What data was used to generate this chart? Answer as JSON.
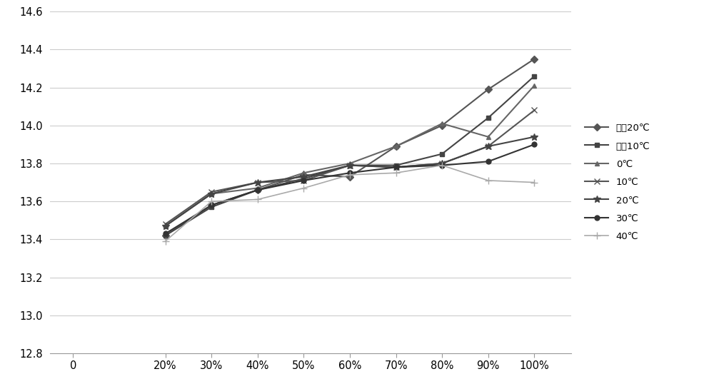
{
  "x_labels": [
    "0",
    "20%",
    "30%",
    "40%",
    "50%",
    "60%",
    "70%",
    "80%",
    "90%",
    "100%"
  ],
  "x_values": [
    0,
    20,
    30,
    40,
    50,
    60,
    70,
    80,
    90,
    100
  ],
  "series": [
    {
      "label": "零下20℃",
      "data": [
        null,
        13.42,
        13.58,
        13.66,
        13.74,
        13.73,
        13.89,
        14.0,
        14.19,
        14.35
      ],
      "color": "#555555",
      "marker": "D",
      "linewidth": 1.5,
      "markersize": 5,
      "markerfacecolor": "#555555"
    },
    {
      "label": "零下10℃",
      "data": [
        null,
        13.42,
        13.57,
        13.66,
        13.72,
        13.79,
        13.79,
        13.85,
        14.04,
        14.26
      ],
      "color": "#444444",
      "marker": "s",
      "linewidth": 1.5,
      "markersize": 5,
      "markerfacecolor": "#444444"
    },
    {
      "label": "0℃",
      "data": [
        null,
        13.47,
        13.64,
        13.67,
        13.75,
        13.8,
        13.89,
        14.01,
        13.94,
        14.21
      ],
      "color": "#666666",
      "marker": "^",
      "linewidth": 1.5,
      "markersize": 5,
      "markerfacecolor": "#666666"
    },
    {
      "label": "10℃",
      "data": [
        null,
        13.48,
        13.65,
        13.7,
        13.71,
        13.79,
        13.78,
        13.8,
        13.89,
        14.08
      ],
      "color": "#555555",
      "marker": "x",
      "linewidth": 1.5,
      "markersize": 6,
      "markerfacecolor": "#555555"
    },
    {
      "label": "20℃",
      "data": [
        null,
        13.47,
        13.64,
        13.7,
        13.73,
        13.79,
        13.78,
        13.8,
        13.89,
        13.94
      ],
      "color": "#444444",
      "marker": "*",
      "linewidth": 1.5,
      "markersize": 7,
      "markerfacecolor": "#444444"
    },
    {
      "label": "30℃",
      "data": [
        null,
        13.43,
        13.58,
        13.66,
        13.71,
        13.75,
        13.78,
        13.79,
        13.81,
        13.9
      ],
      "color": "#333333",
      "marker": "o",
      "linewidth": 1.5,
      "markersize": 5,
      "markerfacecolor": "#333333"
    },
    {
      "label": "40℃",
      "data": [
        null,
        13.39,
        13.6,
        13.61,
        13.67,
        13.74,
        13.75,
        13.79,
        13.71,
        13.7
      ],
      "color": "#aaaaaa",
      "marker": "+",
      "linewidth": 1.2,
      "markersize": 7,
      "markerfacecolor": "#aaaaaa"
    }
  ],
  "ylim": [
    12.8,
    14.6
  ],
  "yticks": [
    12.8,
    13.0,
    13.2,
    13.4,
    13.6,
    13.8,
    14.0,
    14.2,
    14.4,
    14.6
  ],
  "background_color": "#ffffff",
  "grid_color": "#cccccc",
  "legend_fontsize": 9.5,
  "tick_fontsize": 10.5
}
